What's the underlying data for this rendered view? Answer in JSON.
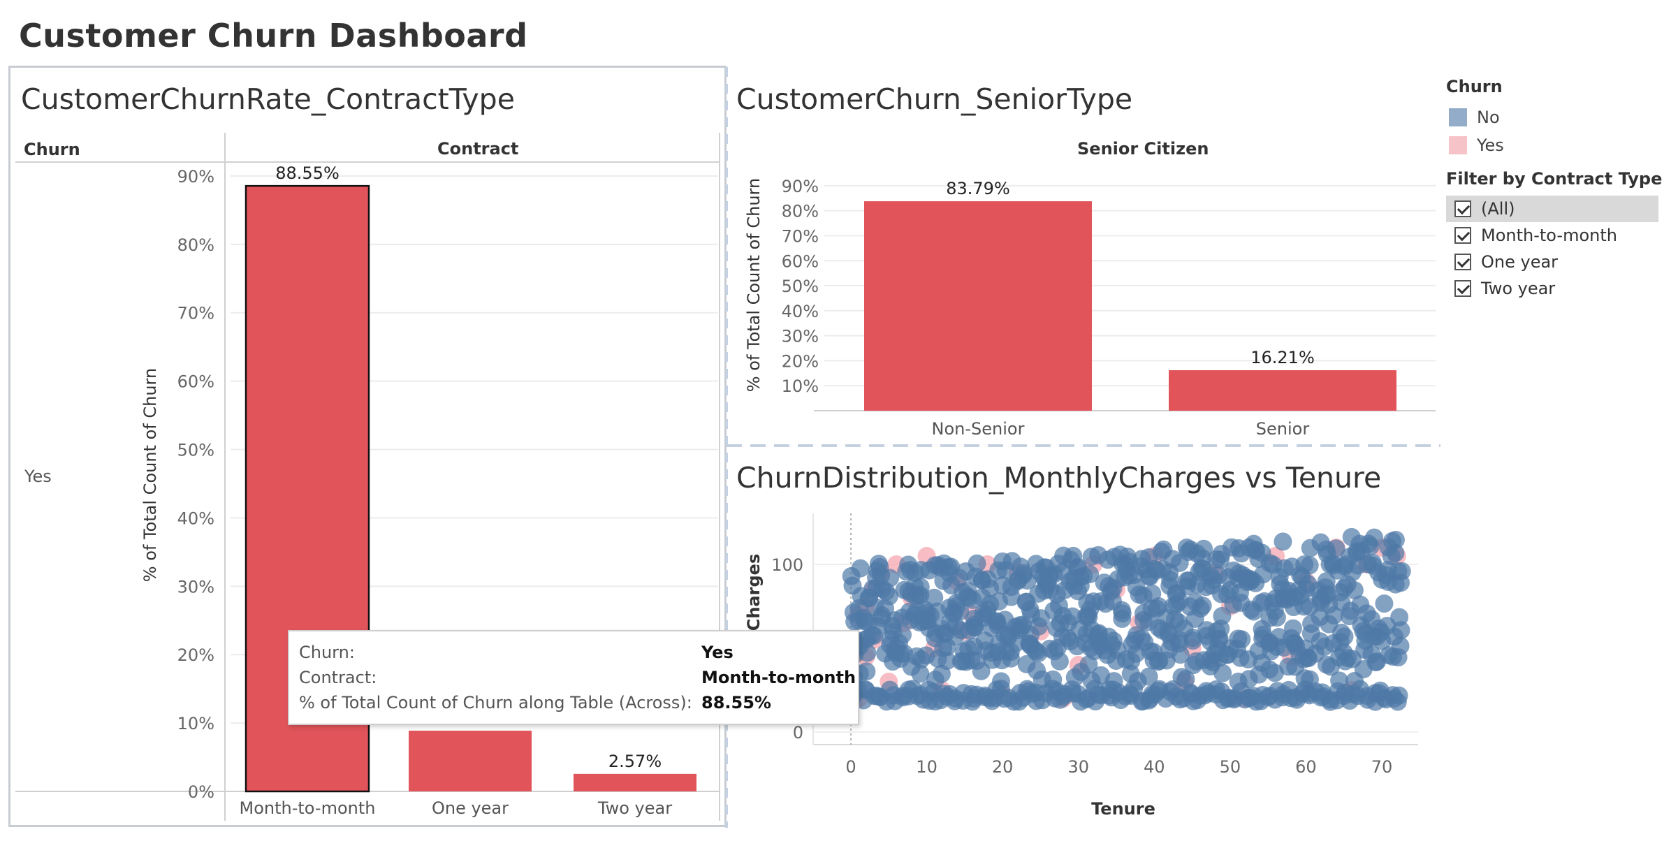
{
  "dashboard": {
    "title": "Customer Churn Dashboard"
  },
  "colors": {
    "churn_yes_bar": "#e0545a",
    "churn_no": "#4e79a7",
    "churn_yes_legend": "#f6c3c9",
    "divider": "#c5d1e0"
  },
  "panel_contract": {
    "title": "CustomerChurnRate_ContractType",
    "row_header": "Churn",
    "col_header": "Contract",
    "row_value": "Yes",
    "ylabel": "% of Total Count of Churn"
  },
  "panel_senior": {
    "title": "CustomerChurn_SeniorType",
    "col_header": "Senior Citizen",
    "ylabel": "% of Total Count of Churn"
  },
  "panel_scatter": {
    "title": "ChurnDistribution_MonthlyCharges vs Tenure",
    "xlabel": "Tenure",
    "ylabel": "Charges"
  },
  "legend": {
    "title": "Churn",
    "items": [
      {
        "label": "No",
        "color": "#93acc9"
      },
      {
        "label": "Yes",
        "color": "#f6c3c9"
      }
    ]
  },
  "filter": {
    "title": "Filter by Contract Type",
    "options": [
      {
        "label": "(All)",
        "checked": true,
        "highlighted": true
      },
      {
        "label": "Month-to-month",
        "checked": true
      },
      {
        "label": "One year",
        "checked": true
      },
      {
        "label": "Two year",
        "checked": true
      }
    ]
  },
  "tooltip": {
    "rows": [
      {
        "key": "Churn:",
        "value": "Yes"
      },
      {
        "key": "Contract:",
        "value": "Month-to-month"
      },
      {
        "key": "% of Total Count of Churn along Table (Across):",
        "value": "88.55%"
      }
    ]
  },
  "chart_data": [
    {
      "type": "bar",
      "title": "CustomerChurnRate_ContractType",
      "xlabel": "Contract",
      "ylabel": "% of Total Count of Churn",
      "categories": [
        "Month-to-month",
        "One year",
        "Two year"
      ],
      "values": [
        88.55,
        8.88,
        2.57
      ],
      "data_labels": [
        "88.55%",
        "",
        "2.57%"
      ],
      "ylim": [
        0,
        95
      ],
      "yticks": [
        "0%",
        "10%",
        "20%",
        "30%",
        "40%",
        "50%",
        "60%",
        "70%",
        "80%",
        "90%"
      ],
      "selected": "Month-to-month"
    },
    {
      "type": "bar",
      "title": "CustomerChurn_SeniorType",
      "xlabel": "Senior Citizen",
      "ylabel": "% of Total Count of Churn",
      "categories": [
        "Non-Senior",
        "Senior"
      ],
      "values": [
        83.79,
        16.21
      ],
      "data_labels": [
        "83.79%",
        "16.21%"
      ],
      "ylim": [
        0,
        95
      ],
      "yticks": [
        "10%",
        "20%",
        "30%",
        "40%",
        "50%",
        "60%",
        "70%",
        "80%",
        "90%"
      ]
    },
    {
      "type": "scatter",
      "title": "ChurnDistribution_MonthlyCharges vs Tenure",
      "xlabel": "Tenure",
      "ylabel": "Charges",
      "xlim": [
        -5,
        75
      ],
      "ylim": [
        -5,
        125
      ],
      "xticks": [
        0,
        10,
        20,
        30,
        40,
        50,
        60,
        70
      ],
      "yticks": [
        0,
        100
      ],
      "series": [
        {
          "name": "Yes",
          "color": "#f6a7b0",
          "points": [
            [
              1,
              70
            ],
            [
              1,
              20
            ],
            [
              2,
              75
            ],
            [
              3,
              85
            ],
            [
              2,
              45
            ],
            [
              4,
              95
            ],
            [
              5,
              30
            ],
            [
              6,
              100
            ],
            [
              8,
              80
            ],
            [
              10,
              105
            ],
            [
              12,
              25
            ],
            [
              14,
              90
            ],
            [
              16,
              70
            ],
            [
              18,
              100
            ],
            [
              22,
              95
            ],
            [
              25,
              60
            ],
            [
              28,
              20
            ],
            [
              32,
              100
            ],
            [
              35,
              85
            ],
            [
              40,
              105
            ],
            [
              45,
              50
            ],
            [
              48,
              95
            ],
            [
              52,
              20
            ],
            [
              56,
              105
            ],
            [
              60,
              90
            ],
            [
              64,
              110
            ],
            [
              68,
              100
            ],
            [
              70,
              110
            ],
            [
              72,
              105
            ],
            [
              3,
              55
            ],
            [
              7,
              65
            ],
            [
              11,
              50
            ],
            [
              15,
              60
            ],
            [
              20,
              22
            ],
            [
              30,
              40
            ],
            [
              38,
              65
            ],
            [
              44,
              30
            ],
            [
              50,
              75
            ],
            [
              58,
              45
            ],
            [
              66,
              25
            ]
          ]
        },
        {
          "name": "No",
          "color": "#4e79a7",
          "points": []
        }
      ]
    }
  ]
}
